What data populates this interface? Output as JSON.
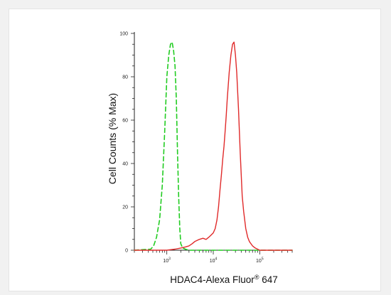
{
  "chart_data": {
    "type": "line",
    "xlabel": "HDAC4-Alexa Fluor® 647",
    "xlabel_main": "HDAC4-Alexa Fluor",
    "xlabel_sup": "®",
    "xlabel_tail": " 647",
    "ylabel": "Cell Counts (% Max)",
    "x_scale": "log",
    "xlim": [
      200,
      500000
    ],
    "ylim": [
      0,
      100
    ],
    "y_ticks": [
      0,
      20,
      40,
      60,
      80,
      100
    ],
    "y_tick_labels": [
      "0",
      "20",
      "40",
      "60",
      "80",
      "100"
    ],
    "x_ticks": [
      1000,
      10000,
      100000
    ],
    "x_tick_labels": [
      {
        "base": "10",
        "exp": "3"
      },
      {
        "base": "10",
        "exp": "4"
      },
      {
        "base": "10",
        "exp": "5"
      }
    ],
    "grid": false,
    "legend": "none",
    "series": [
      {
        "color": "#22cc22",
        "style": "dashed",
        "x": [
          200,
          450,
          520,
          600,
          700,
          800,
          900,
          1000,
          1100,
          1200,
          1300,
          1400,
          1500,
          1600,
          1700,
          1800,
          1900,
          2000,
          2200,
          2500,
          3000,
          5000,
          10000,
          20000,
          50000,
          100000,
          200000,
          500000
        ],
        "y": [
          0,
          0.5,
          2,
          6,
          14,
          30,
          55,
          80,
          90,
          95,
          96,
          92,
          85,
          70,
          45,
          25,
          10,
          3,
          1,
          0.5,
          0,
          0,
          0,
          0,
          0,
          0,
          0,
          0
        ]
      },
      {
        "color": "#e02a2a",
        "style": "solid",
        "x": [
          200,
          1000,
          1500,
          2000,
          2500,
          3000,
          3500,
          4000,
          5000,
          6000,
          7000,
          8000,
          9000,
          10000,
          11000,
          12000,
          13000,
          14000,
          15000,
          16000,
          17000,
          18000,
          19000,
          20000,
          22000,
          24000,
          26000,
          28000,
          30000,
          32000,
          35000,
          38000,
          40000,
          42000,
          45000,
          50000,
          55000,
          60000,
          70000,
          80000,
          100000,
          200000,
          500000
        ],
        "y": [
          0,
          0,
          0.5,
          1,
          1.5,
          2,
          3,
          4,
          5,
          5.5,
          5,
          6,
          7,
          8,
          10,
          14,
          20,
          28,
          35,
          42,
          48,
          55,
          62,
          70,
          82,
          90,
          95,
          96,
          90,
          82,
          65,
          45,
          35,
          25,
          18,
          10,
          6,
          4,
          2,
          1,
          0,
          0,
          0
        ]
      }
    ]
  }
}
